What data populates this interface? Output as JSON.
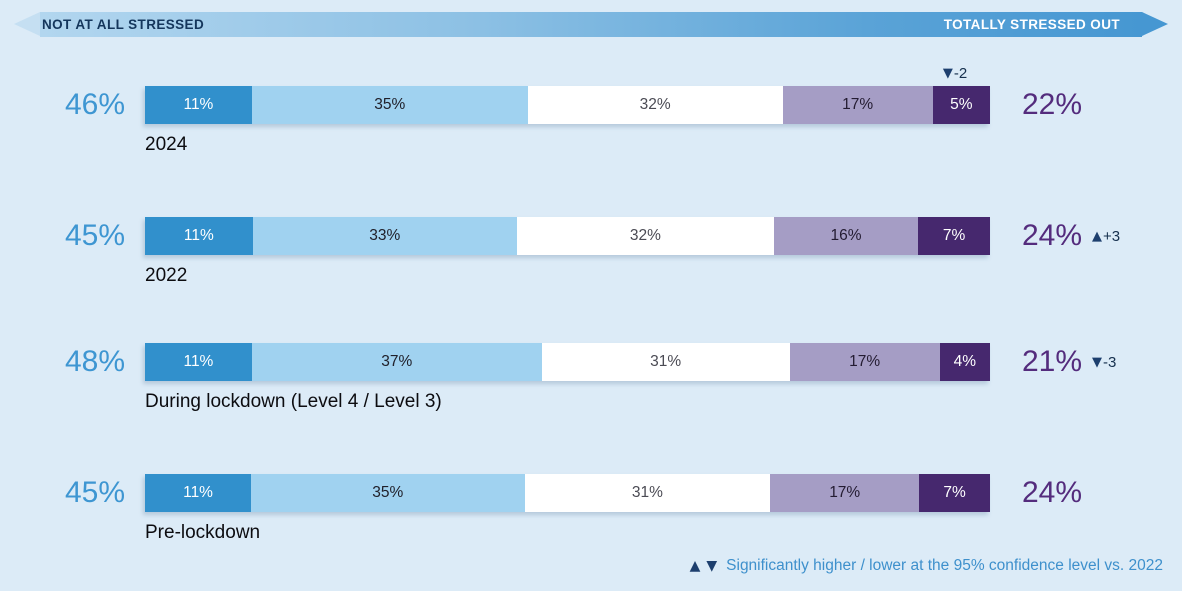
{
  "header": {
    "left_label": "NOT AT ALL STRESSED",
    "right_label": "TOTALLY STRESSED OUT"
  },
  "footnote": {
    "up_symbol": "▲",
    "down_symbol": "▼",
    "text": "Significantly higher / lower at the 95% confidence level vs. 2022"
  },
  "chart_data": {
    "type": "bar",
    "stacked": true,
    "orientation": "horizontal",
    "units": "%",
    "scale": {
      "left": "NOT AT ALL STRESSED",
      "right": "TOTALLY STRESSED OUT"
    },
    "segment_colors": [
      "#3190cc",
      "#a0d2f0",
      "#ffffff",
      "#a59dc5",
      "#46286e"
    ],
    "segment_text_colors": [
      "#ffffff",
      "#20202a",
      "#4b4b54",
      "#241c32",
      "#ffffff"
    ],
    "accent_colors": {
      "background": "#dcebf7",
      "left_total": "#3e96d2",
      "right_total": "#542c7d",
      "triangle_navy": "#1d3f6e",
      "footnote_blue": "#3e90cc"
    },
    "rows": [
      {
        "label": "2024",
        "left_total": "46%",
        "right_total": "22%",
        "values": [
          11,
          35,
          32,
          17,
          5
        ],
        "above_annotation": {
          "symbol": "▼",
          "value": "-2",
          "segment_index": 4
        },
        "side_annotation": null
      },
      {
        "label": "2022",
        "left_total": "45%",
        "right_total": "24%",
        "values": [
          11,
          33,
          32,
          16,
          7
        ],
        "above_annotation": null,
        "side_annotation": {
          "symbol": "▲",
          "value": "+3"
        }
      },
      {
        "label": "During lockdown (Level 4 / Level 3)",
        "left_total": "48%",
        "right_total": "21%",
        "values": [
          11,
          37,
          31,
          17,
          4
        ],
        "above_annotation": null,
        "side_annotation": {
          "symbol": "▼",
          "value": "-3"
        }
      },
      {
        "label": "Pre-lockdown",
        "left_total": "45%",
        "right_total": "24%",
        "values": [
          11,
          35,
          31,
          17,
          7
        ],
        "above_annotation": null,
        "side_annotation": null
      }
    ]
  }
}
